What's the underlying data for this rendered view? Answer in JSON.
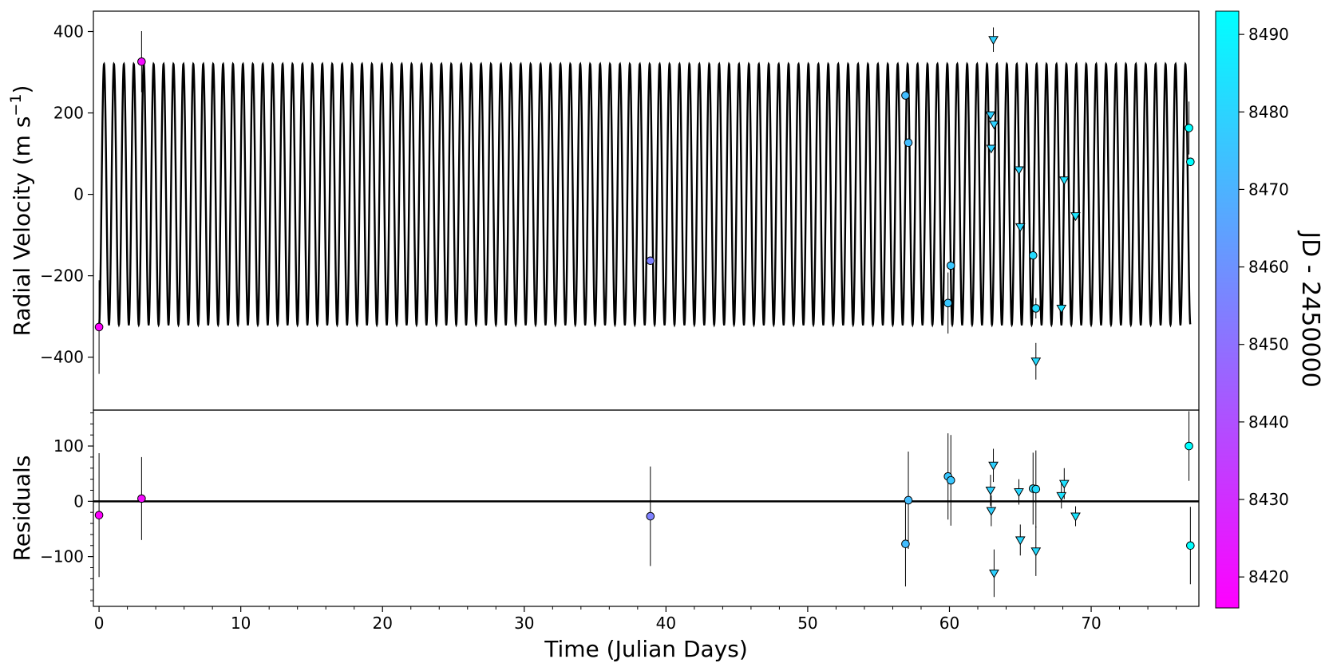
{
  "chart_data": [
    {
      "panel": "rv",
      "type": "scatter",
      "xlabel": "Time (Julian Days)",
      "ylabel": "Radial Velocity (m s$^{-1}$)",
      "ylabel_parts": {
        "main": "Radial Velocity (m s",
        "sup": "−1",
        "close": ")"
      },
      "xlim": [
        -0.4,
        77.6
      ],
      "ylim": [
        -530,
        450
      ],
      "xticks": [
        0,
        10,
        20,
        30,
        40,
        50,
        60,
        70
      ],
      "yticks": [
        -400,
        -200,
        0,
        200,
        400
      ],
      "ytick_labels": [
        "−400",
        "−200",
        "0",
        "200",
        "400"
      ],
      "model": {
        "type": "sine",
        "amplitude": 320,
        "period": 0.7,
        "phase_offset_days": 0.175,
        "color": "#000000"
      },
      "series": [
        {
          "marker": "circle",
          "points": [
            {
              "x": 0.0,
              "y": -326,
              "err": 115,
              "jd": 8416
            },
            {
              "x": 3.0,
              "y": 326,
              "err": 75,
              "jd": 8419
            },
            {
              "x": 38.9,
              "y": -163,
              "err": 0,
              "jd": 8455
            },
            {
              "x": 56.9,
              "y": 243,
              "err": 0,
              "jd": 8473
            },
            {
              "x": 57.1,
              "y": 127,
              "err": 0,
              "jd": 8473
            },
            {
              "x": 59.9,
              "y": -267,
              "err": 75,
              "jd": 8476
            },
            {
              "x": 60.1,
              "y": -175,
              "err": 0,
              "jd": 8476
            },
            {
              "x": 65.9,
              "y": -150,
              "err": 0,
              "jd": 8482
            },
            {
              "x": 66.1,
              "y": -280,
              "err": 25,
              "jd": 8482
            },
            {
              "x": 76.9,
              "y": 163,
              "err": 65,
              "jd": 8493
            },
            {
              "x": 77.0,
              "y": 80,
              "err": 0,
              "jd": 8493
            }
          ]
        },
        {
          "marker": "triangle",
          "points": [
            {
              "x": 62.9,
              "y": 195,
              "err": 0,
              "jd": 8479
            },
            {
              "x": 62.95,
              "y": 113,
              "err": 0,
              "jd": 8479
            },
            {
              "x": 63.1,
              "y": 380,
              "err": 30,
              "jd": 8479
            },
            {
              "x": 63.15,
              "y": 172,
              "err": 0,
              "jd": 8479
            },
            {
              "x": 64.9,
              "y": 60,
              "err": 0,
              "jd": 8481
            },
            {
              "x": 65.0,
              "y": -80,
              "err": 0,
              "jd": 8481
            },
            {
              "x": 66.1,
              "y": -410,
              "err": 45,
              "jd": 8482
            },
            {
              "x": 67.9,
              "y": -280,
              "err": 0,
              "jd": 8484
            },
            {
              "x": 68.1,
              "y": 35,
              "err": 0,
              "jd": 8484
            },
            {
              "x": 68.9,
              "y": -53,
              "err": 0,
              "jd": 8485
            }
          ]
        }
      ]
    },
    {
      "panel": "residuals",
      "type": "scatter",
      "ylabel": "Residuals",
      "xlim": [
        -0.4,
        77.6
      ],
      "ylim": [
        -190,
        165
      ],
      "yticks": [
        -100,
        0,
        100
      ],
      "ytick_labels": [
        "−100",
        "0",
        "100"
      ],
      "zero_line": true,
      "series": [
        {
          "marker": "circle",
          "points": [
            {
              "x": 0.0,
              "y": -25,
              "err": 112,
              "jd": 8416
            },
            {
              "x": 3.0,
              "y": 5,
              "err": 75,
              "jd": 8419
            },
            {
              "x": 38.9,
              "y": -27,
              "err": 90,
              "jd": 8455
            },
            {
              "x": 56.9,
              "y": -77,
              "err": 77,
              "jd": 8473
            },
            {
              "x": 57.1,
              "y": 2,
              "err": 88,
              "jd": 8473
            },
            {
              "x": 59.9,
              "y": 45,
              "err": 78,
              "jd": 8476
            },
            {
              "x": 60.1,
              "y": 38,
              "err": 82,
              "jd": 8476
            },
            {
              "x": 65.9,
              "y": 23,
              "err": 65,
              "jd": 8482
            },
            {
              "x": 66.1,
              "y": 22,
              "err": 70,
              "jd": 8482
            },
            {
              "x": 76.9,
              "y": 100,
              "err": 63,
              "jd": 8493
            },
            {
              "x": 77.0,
              "y": -80,
              "err": 70,
              "jd": 8493
            }
          ]
        },
        {
          "marker": "triangle",
          "points": [
            {
              "x": 62.9,
              "y": 20,
              "err": 28,
              "jd": 8479
            },
            {
              "x": 62.95,
              "y": -17,
              "err": 28,
              "jd": 8479
            },
            {
              "x": 63.1,
              "y": 65,
              "err": 30,
              "jd": 8479
            },
            {
              "x": 63.15,
              "y": -130,
              "err": 43,
              "jd": 8479
            },
            {
              "x": 64.9,
              "y": 17,
              "err": 23,
              "jd": 8481
            },
            {
              "x": 65.0,
              "y": -70,
              "err": 28,
              "jd": 8481
            },
            {
              "x": 66.1,
              "y": -90,
              "err": 45,
              "jd": 8482
            },
            {
              "x": 67.9,
              "y": 10,
              "err": 23,
              "jd": 8484
            },
            {
              "x": 68.1,
              "y": 32,
              "err": 28,
              "jd": 8484
            },
            {
              "x": 68.9,
              "y": -27,
              "err": 18,
              "jd": 8485
            }
          ]
        }
      ]
    }
  ],
  "colorbar": {
    "label": "JD - 2450000",
    "range": [
      8416,
      8493
    ],
    "ticks": [
      8420,
      8430,
      8440,
      8450,
      8460,
      8470,
      8480,
      8490
    ],
    "color_low": "#ff00ff",
    "color_high": "#00ffff"
  }
}
